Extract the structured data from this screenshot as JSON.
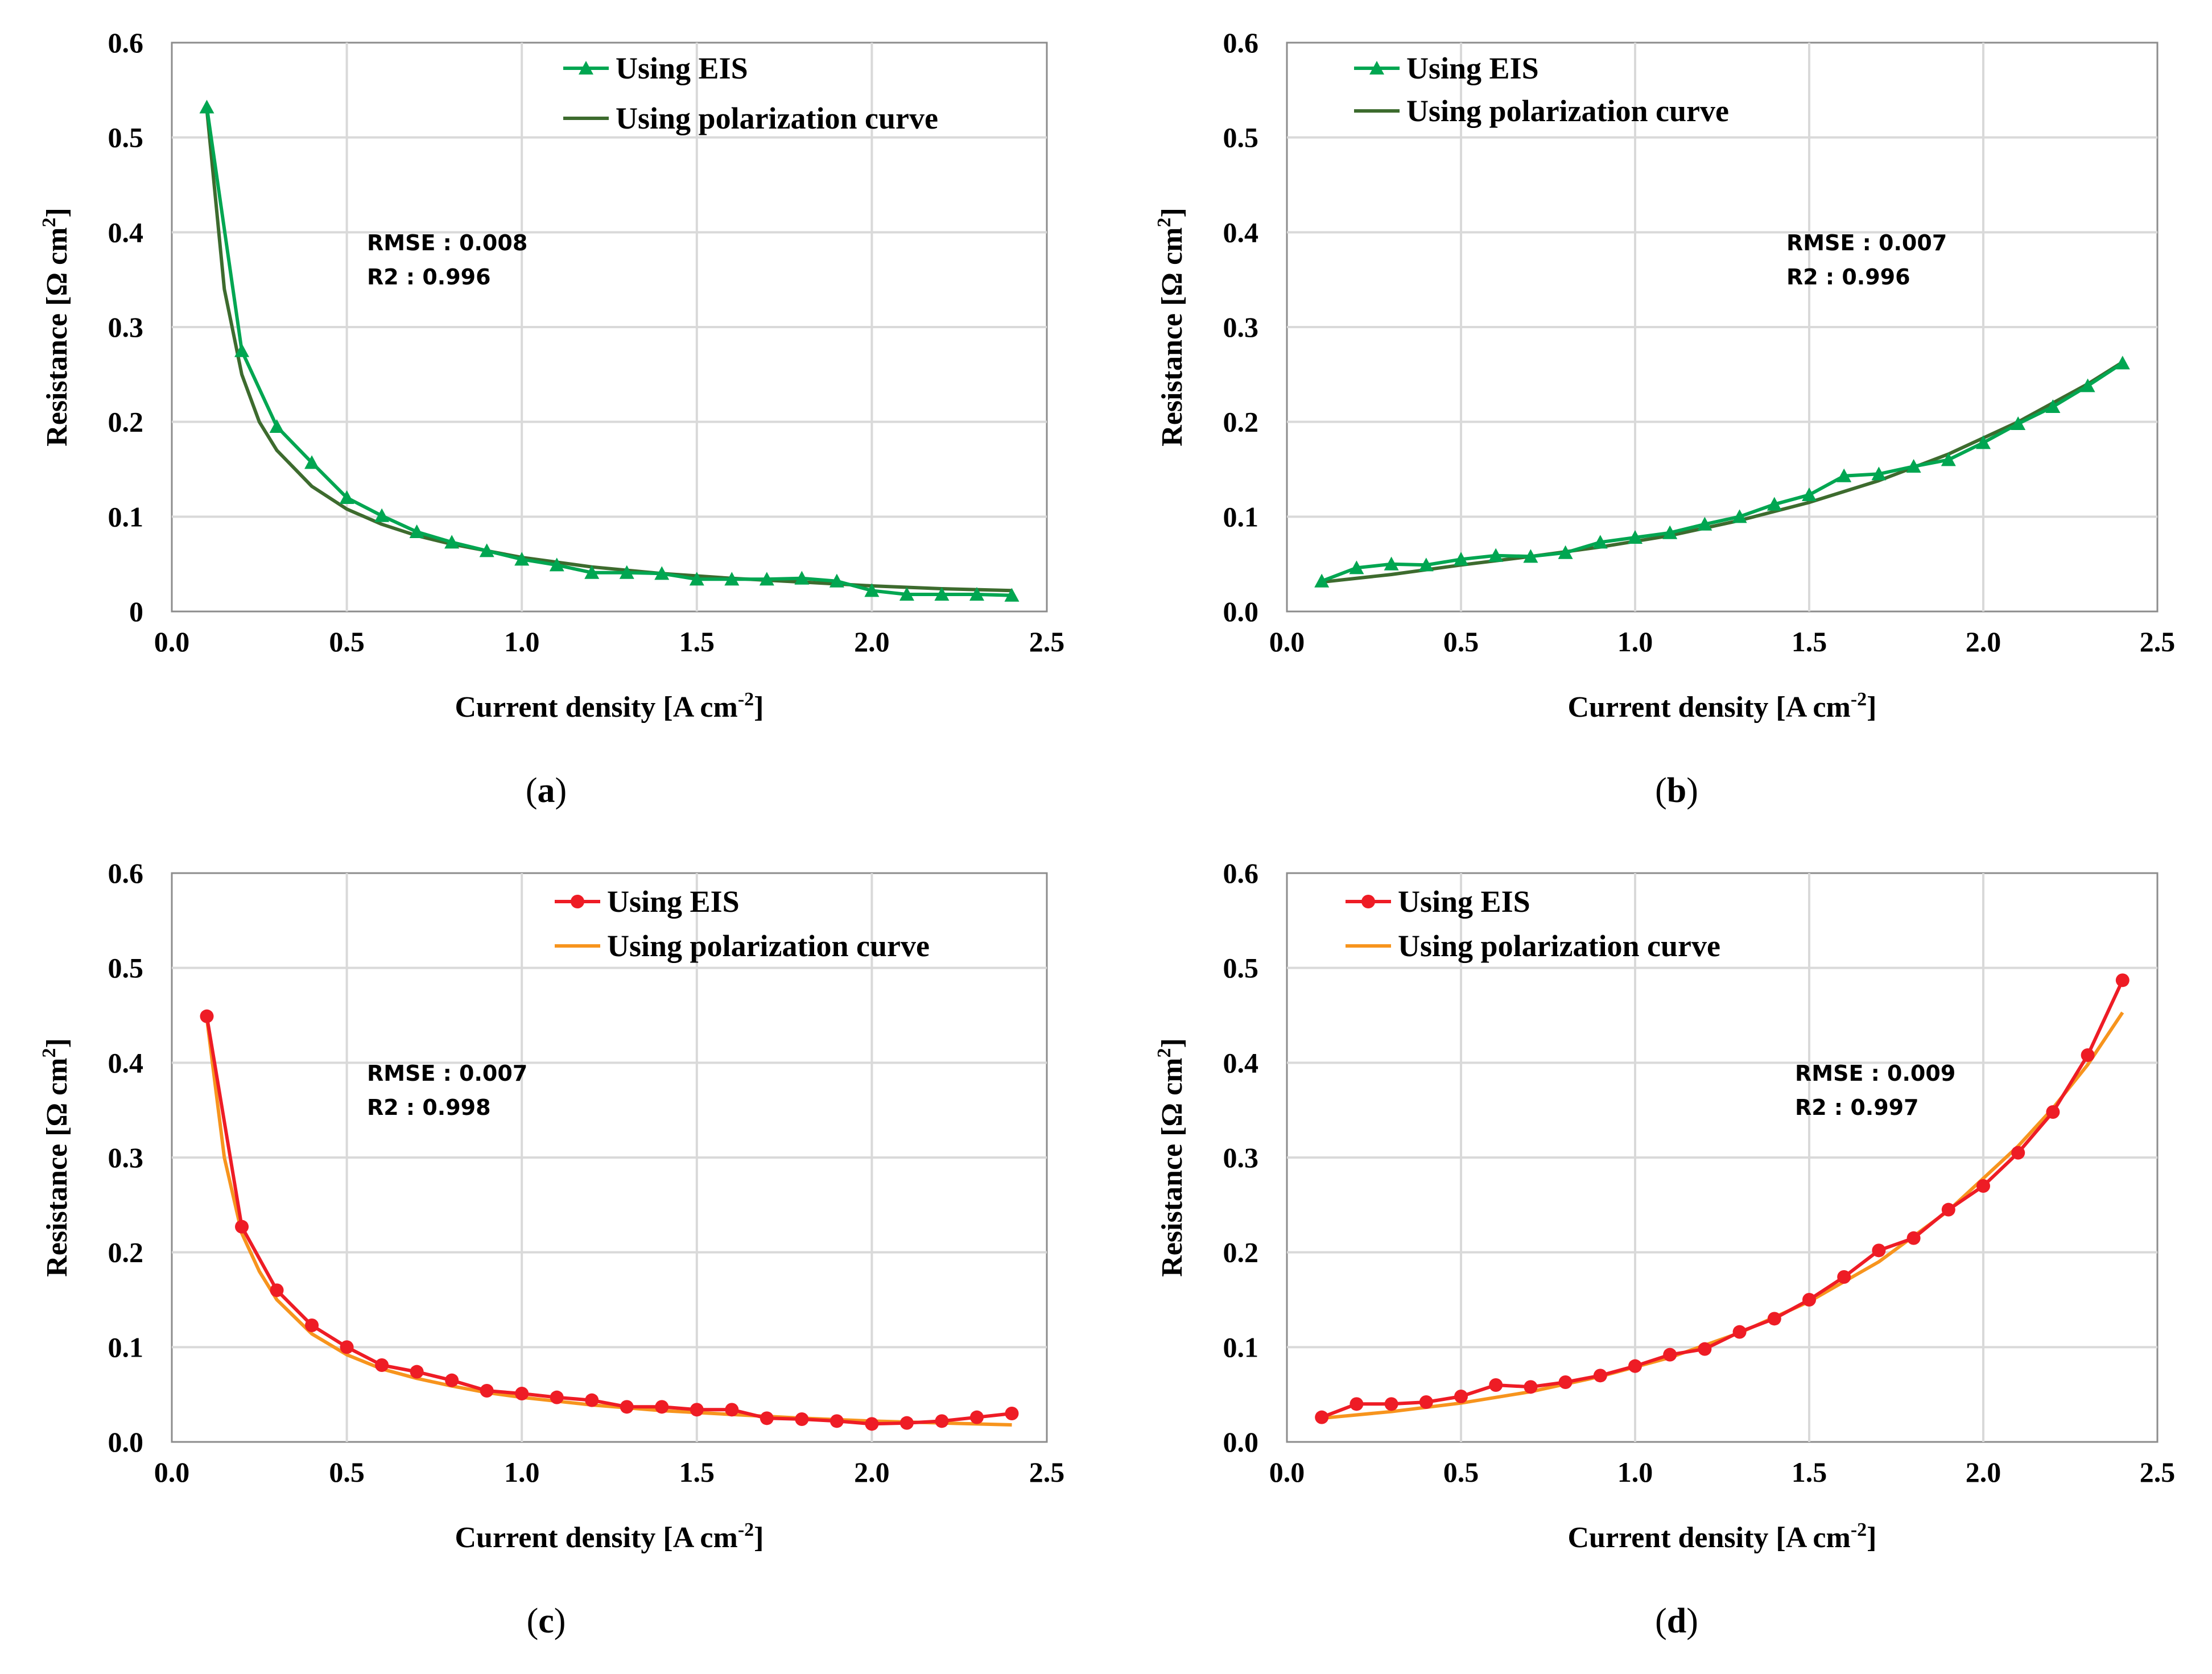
{
  "chart_data": [
    {
      "type": "line",
      "panel_label": "a",
      "xlabel": "Current density [A cm",
      "xlabel_sup": "-2",
      "xlabel_tail": "]",
      "ylabel": "Resistance [Ω cm",
      "ylabel_sup": "2",
      "ylabel_tail": "]",
      "xlim": [
        0,
        2.5
      ],
      "ylim": [
        0,
        0.6
      ],
      "xticks": [
        "0.0",
        "0.5",
        "1.0",
        "1.5",
        "2.0",
        "2.5"
      ],
      "yticks": [
        "0",
        "0.1",
        "0.2",
        "0.3",
        "0.4",
        "0.5",
        "0.6"
      ],
      "grid": true,
      "legend_position": "top-center",
      "stats": {
        "rmse": "RMSE : 0.008",
        "r2": "R2 : 0.996"
      },
      "stats_position": "upper-left",
      "series": [
        {
          "name": "Using EIS",
          "color": "#00a651",
          "marker": "triangle",
          "x": [
            0.1,
            0.2,
            0.3,
            0.4,
            0.5,
            0.6,
            0.7,
            0.8,
            0.9,
            1.0,
            1.1,
            1.2,
            1.3,
            1.4,
            1.5,
            1.6,
            1.7,
            1.8,
            1.9,
            2.0,
            2.1,
            2.2,
            2.3,
            2.4
          ],
          "values": [
            0.532,
            0.275,
            0.195,
            0.157,
            0.12,
            0.101,
            0.084,
            0.073,
            0.064,
            0.055,
            0.049,
            0.041,
            0.041,
            0.04,
            0.034,
            0.034,
            0.034,
            0.035,
            0.032,
            0.022,
            0.018,
            0.018,
            0.018,
            0.017
          ]
        },
        {
          "name": "Using polarization curve",
          "color": "#3d6b2e",
          "marker": "none",
          "x": [
            0.1,
            0.15,
            0.2,
            0.25,
            0.3,
            0.4,
            0.5,
            0.6,
            0.7,
            0.8,
            0.9,
            1.0,
            1.2,
            1.4,
            1.6,
            1.8,
            2.0,
            2.2,
            2.4
          ],
          "values": [
            0.53,
            0.34,
            0.25,
            0.2,
            0.17,
            0.132,
            0.108,
            0.092,
            0.08,
            0.071,
            0.064,
            0.057,
            0.047,
            0.04,
            0.035,
            0.031,
            0.027,
            0.024,
            0.022
          ]
        }
      ]
    },
    {
      "type": "line",
      "panel_label": "b",
      "xlabel": "Current density [A cm",
      "xlabel_sup": "-2",
      "xlabel_tail": "]",
      "ylabel": "Resistance [Ω cm",
      "ylabel_sup": "2",
      "ylabel_tail": "]",
      "xlim": [
        0,
        2.5
      ],
      "ylim": [
        0,
        0.6
      ],
      "xticks": [
        "0.0",
        "0.5",
        "1.0",
        "1.5",
        "2.0",
        "2.5"
      ],
      "yticks": [
        "0.0",
        "0.1",
        "0.2",
        "0.3",
        "0.4",
        "0.5",
        "0.6"
      ],
      "grid": true,
      "legend_position": "top-left",
      "stats": {
        "rmse": "RMSE : 0.007",
        "r2": "R2 : 0.996"
      },
      "stats_position": "upper-right",
      "series": [
        {
          "name": "Using EIS",
          "color": "#00a651",
          "marker": "triangle",
          "x": [
            0.1,
            0.2,
            0.3,
            0.4,
            0.5,
            0.6,
            0.7,
            0.8,
            0.9,
            1.0,
            1.1,
            1.2,
            1.3,
            1.4,
            1.5,
            1.6,
            1.7,
            1.8,
            1.9,
            2.0,
            2.1,
            2.2,
            2.3,
            2.4
          ],
          "values": [
            0.032,
            0.046,
            0.05,
            0.049,
            0.055,
            0.059,
            0.058,
            0.062,
            0.073,
            0.078,
            0.083,
            0.092,
            0.1,
            0.113,
            0.123,
            0.143,
            0.145,
            0.153,
            0.16,
            0.178,
            0.198,
            0.216,
            0.238,
            0.262
          ]
        },
        {
          "name": "Using polarization curve",
          "color": "#3d6b2e",
          "marker": "none",
          "x": [
            0.1,
            0.3,
            0.5,
            0.7,
            0.9,
            1.1,
            1.3,
            1.5,
            1.7,
            1.9,
            2.1,
            2.3,
            2.4
          ],
          "values": [
            0.031,
            0.039,
            0.049,
            0.058,
            0.068,
            0.08,
            0.096,
            0.115,
            0.138,
            0.166,
            0.2,
            0.24,
            0.263
          ]
        }
      ]
    },
    {
      "type": "line",
      "panel_label": "c",
      "xlabel": "Current density [A cm",
      "xlabel_sup": "-2",
      "xlabel_tail": "]",
      "ylabel": "Resistance [Ω cm",
      "ylabel_sup": "2",
      "ylabel_tail": "]",
      "xlim": [
        0,
        2.5
      ],
      "ylim": [
        0,
        0.6
      ],
      "xticks": [
        "0.0",
        "0.5",
        "1.0",
        "1.5",
        "2.0",
        "2.5"
      ],
      "yticks": [
        "0.0",
        "0.1",
        "0.2",
        "0.3",
        "0.4",
        "0.5",
        "0.6"
      ],
      "grid": true,
      "legend_position": "top-center",
      "stats": {
        "rmse": "RMSE : 0.007",
        "r2": "R2 : 0.998"
      },
      "stats_position": "upper-left",
      "series": [
        {
          "name": "Using EIS",
          "color": "#ee1c25",
          "marker": "circle",
          "x": [
            0.1,
            0.2,
            0.3,
            0.4,
            0.5,
            0.6,
            0.7,
            0.8,
            0.9,
            1.0,
            1.1,
            1.2,
            1.3,
            1.4,
            1.5,
            1.6,
            1.7,
            1.8,
            1.9,
            2.0,
            2.1,
            2.2,
            2.3,
            2.4
          ],
          "values": [
            0.449,
            0.227,
            0.16,
            0.123,
            0.1,
            0.081,
            0.074,
            0.065,
            0.054,
            0.051,
            0.047,
            0.044,
            0.037,
            0.037,
            0.034,
            0.034,
            0.025,
            0.024,
            0.022,
            0.019,
            0.02,
            0.022,
            0.026,
            0.03
          ]
        },
        {
          "name": "Using polarization curve",
          "color": "#f7941d",
          "marker": "none",
          "x": [
            0.1,
            0.15,
            0.2,
            0.25,
            0.3,
            0.4,
            0.5,
            0.6,
            0.7,
            0.8,
            0.9,
            1.0,
            1.2,
            1.4,
            1.6,
            1.8,
            2.0,
            2.2,
            2.4
          ],
          "values": [
            0.447,
            0.3,
            0.22,
            0.18,
            0.15,
            0.114,
            0.092,
            0.077,
            0.067,
            0.059,
            0.052,
            0.047,
            0.039,
            0.033,
            0.029,
            0.025,
            0.022,
            0.02,
            0.018
          ]
        }
      ]
    },
    {
      "type": "line",
      "panel_label": "d",
      "xlabel": "Current density [A cm",
      "xlabel_sup": "-2",
      "xlabel_tail": "]",
      "ylabel": "Resistance [Ω cm",
      "ylabel_sup": "2",
      "ylabel_tail": "]",
      "xlim": [
        0,
        2.5
      ],
      "ylim": [
        0,
        0.6
      ],
      "xticks": [
        "0.0",
        "0.5",
        "1.0",
        "1.5",
        "2.0",
        "2.5"
      ],
      "yticks": [
        "0.0",
        "0.1",
        "0.2",
        "0.3",
        "0.4",
        "0.5",
        "0.6"
      ],
      "grid": true,
      "legend_position": "top-left",
      "stats": {
        "rmse": "RMSE : 0.009",
        "r2": "R2 : 0.997"
      },
      "stats_position": "upper-right",
      "series": [
        {
          "name": "Using EIS",
          "color": "#ee1c25",
          "marker": "circle",
          "x": [
            0.1,
            0.2,
            0.3,
            0.4,
            0.5,
            0.6,
            0.7,
            0.8,
            0.9,
            1.0,
            1.1,
            1.2,
            1.3,
            1.4,
            1.5,
            1.6,
            1.7,
            1.8,
            1.9,
            2.0,
            2.1,
            2.2,
            2.3,
            2.4
          ],
          "values": [
            0.026,
            0.04,
            0.04,
            0.042,
            0.048,
            0.06,
            0.058,
            0.063,
            0.07,
            0.08,
            0.092,
            0.098,
            0.116,
            0.13,
            0.15,
            0.174,
            0.202,
            0.215,
            0.245,
            0.27,
            0.305,
            0.348,
            0.408,
            0.487
          ]
        },
        {
          "name": "Using polarization curve",
          "color": "#f7941d",
          "marker": "none",
          "x": [
            0.1,
            0.3,
            0.5,
            0.7,
            0.9,
            1.1,
            1.3,
            1.5,
            1.7,
            1.9,
            2.1,
            2.2,
            2.3,
            2.4
          ],
          "values": [
            0.025,
            0.032,
            0.041,
            0.053,
            0.069,
            0.089,
            0.115,
            0.148,
            0.19,
            0.244,
            0.312,
            0.352,
            0.398,
            0.453
          ]
        }
      ]
    }
  ]
}
